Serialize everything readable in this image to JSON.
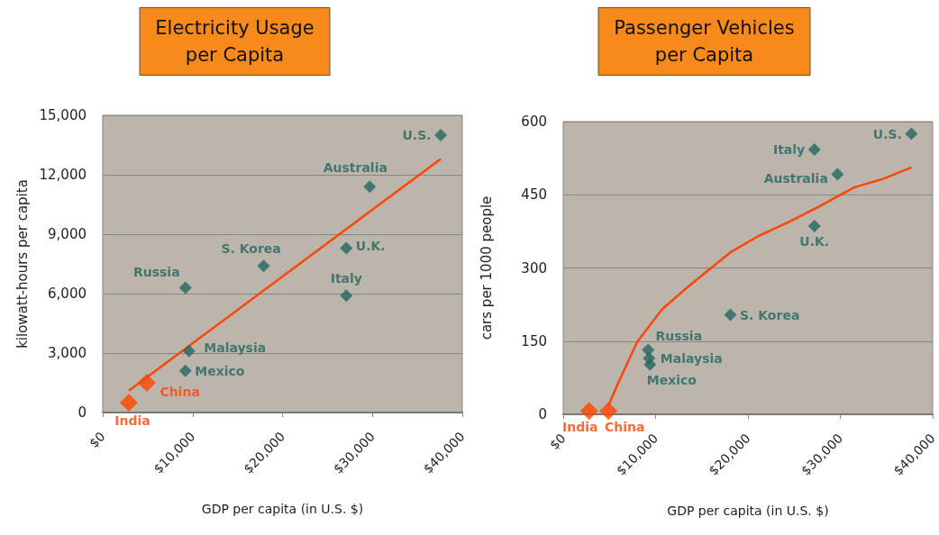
{
  "chart_data": [
    {
      "type": "scatter",
      "title": "Electricity Usage\nper Capita",
      "xlabel": "GDP per capita (in U.S. $)",
      "ylabel": "kilowatt-hours per capita",
      "grid": "y",
      "xlim": [
        0,
        40000
      ],
      "xticks": [
        {
          "value": 0,
          "label": "$0"
        },
        {
          "value": 10000,
          "label": "$10,000"
        },
        {
          "value": 20000,
          "label": "$20,000"
        },
        {
          "value": 30000,
          "label": "$30,000"
        },
        {
          "value": 40000,
          "label": "$40,000"
        }
      ],
      "ylim": [
        0,
        15000
      ],
      "yticks": [
        0,
        {
          "value": 3000,
          "label": "3,000"
        },
        {
          "value": 6000,
          "label": "6,000"
        },
        {
          "value": 9000,
          "label": "9,000"
        },
        {
          "value": 12000,
          "label": "12,000"
        },
        {
          "value": 15000,
          "label": "15,000"
        }
      ],
      "series": [
        {
          "marker": "diamond",
          "color": "#24675f",
          "x": [
            37600,
            29700,
            27100,
            27100,
            17900,
            9200,
            9600,
            9200
          ],
          "values": [
            14000,
            11400,
            8300,
            5900,
            7400,
            6300,
            3100,
            2100
          ]
        },
        {
          "marker": "diamond",
          "color": "#ff4500",
          "x": [
            4900,
            2900
          ],
          "values": [
            1500,
            500
          ]
        },
        {
          "type": "line",
          "marker": "none",
          "color": "#ff4500",
          "x": [
            2900,
            37600
          ],
          "values": [
            1100,
            12800
          ]
        }
      ],
      "annotations": [
        {
          "text": "U.S.",
          "x": 37600,
          "y": 14000
        },
        {
          "text": "Australia",
          "x": 29700,
          "y": 11400
        },
        {
          "text": "U.K.",
          "x": 27100,
          "y": 8300
        },
        {
          "text": "Italy",
          "x": 27100,
          "y": 5900
        },
        {
          "text": "S. Korea",
          "x": 17900,
          "y": 7400
        },
        {
          "text": "Russia",
          "x": 9200,
          "y": 6300
        },
        {
          "text": "Malaysia",
          "x": 9600,
          "y": 3100
        },
        {
          "text": "Mexico",
          "x": 9200,
          "y": 2100
        },
        {
          "text": "China",
          "x": 4900,
          "y": 1500
        },
        {
          "text": "India",
          "x": 2900,
          "y": 500
        }
      ]
    },
    {
      "type": "scatter",
      "title": "Passenger Vehicles\nper Capita",
      "xlabel": "GDP per capita (in U.S. $)",
      "ylabel": "cars per 1000 people",
      "grid": "y",
      "xlim": [
        0,
        40000
      ],
      "xticks": [
        {
          "value": 0,
          "label": "$0"
        },
        {
          "value": 10000,
          "label": "$10,000"
        },
        {
          "value": 20000,
          "label": "$20,000"
        },
        {
          "value": 30000,
          "label": "$30,000"
        },
        {
          "value": 40000,
          "label": "$40,000"
        }
      ],
      "ylim": [
        0,
        600
      ],
      "yticks": [
        0,
        150,
        300,
        450,
        600
      ],
      "series": [
        {
          "marker": "diamond",
          "color": "#24675f",
          "x": [
            37700,
            27200,
            29700,
            27200,
            18100,
            9200,
            9300,
            9400
          ],
          "values": [
            575,
            543,
            492,
            386,
            204,
            132,
            115,
            102
          ]
        },
        {
          "marker": "diamond",
          "color": "#ff4500",
          "x": [
            2800,
            4900
          ],
          "values": [
            7,
            7
          ]
        },
        {
          "type": "line",
          "marker": "none",
          "color": "#ff4500",
          "x": [
            4900,
            5900,
            8000,
            10700,
            13300,
            15500,
            18100,
            21200,
            24400,
            27600,
            31500,
            34700,
            37700
          ],
          "values": [
            18,
            62,
            148,
            215,
            258,
            292,
            332,
            366,
            394,
            425,
            465,
            483,
            506
          ]
        }
      ],
      "annotations": [
        {
          "text": "U.S.",
          "x": 37700,
          "y": 575
        },
        {
          "text": "Italy",
          "x": 27200,
          "y": 543
        },
        {
          "text": "Australia",
          "x": 29700,
          "y": 492
        },
        {
          "text": "U.K.",
          "x": 27200,
          "y": 386
        },
        {
          "text": "S. Korea",
          "x": 18100,
          "y": 204
        },
        {
          "text": "Russia",
          "x": 9200,
          "y": 132
        },
        {
          "text": "Malaysia",
          "x": 9300,
          "y": 115
        },
        {
          "text": "Mexico",
          "x": 9400,
          "y": 102
        },
        {
          "text": "India",
          "x": 2800,
          "y": 7
        },
        {
          "text": "China",
          "x": 4900,
          "y": 7
        }
      ]
    }
  ]
}
